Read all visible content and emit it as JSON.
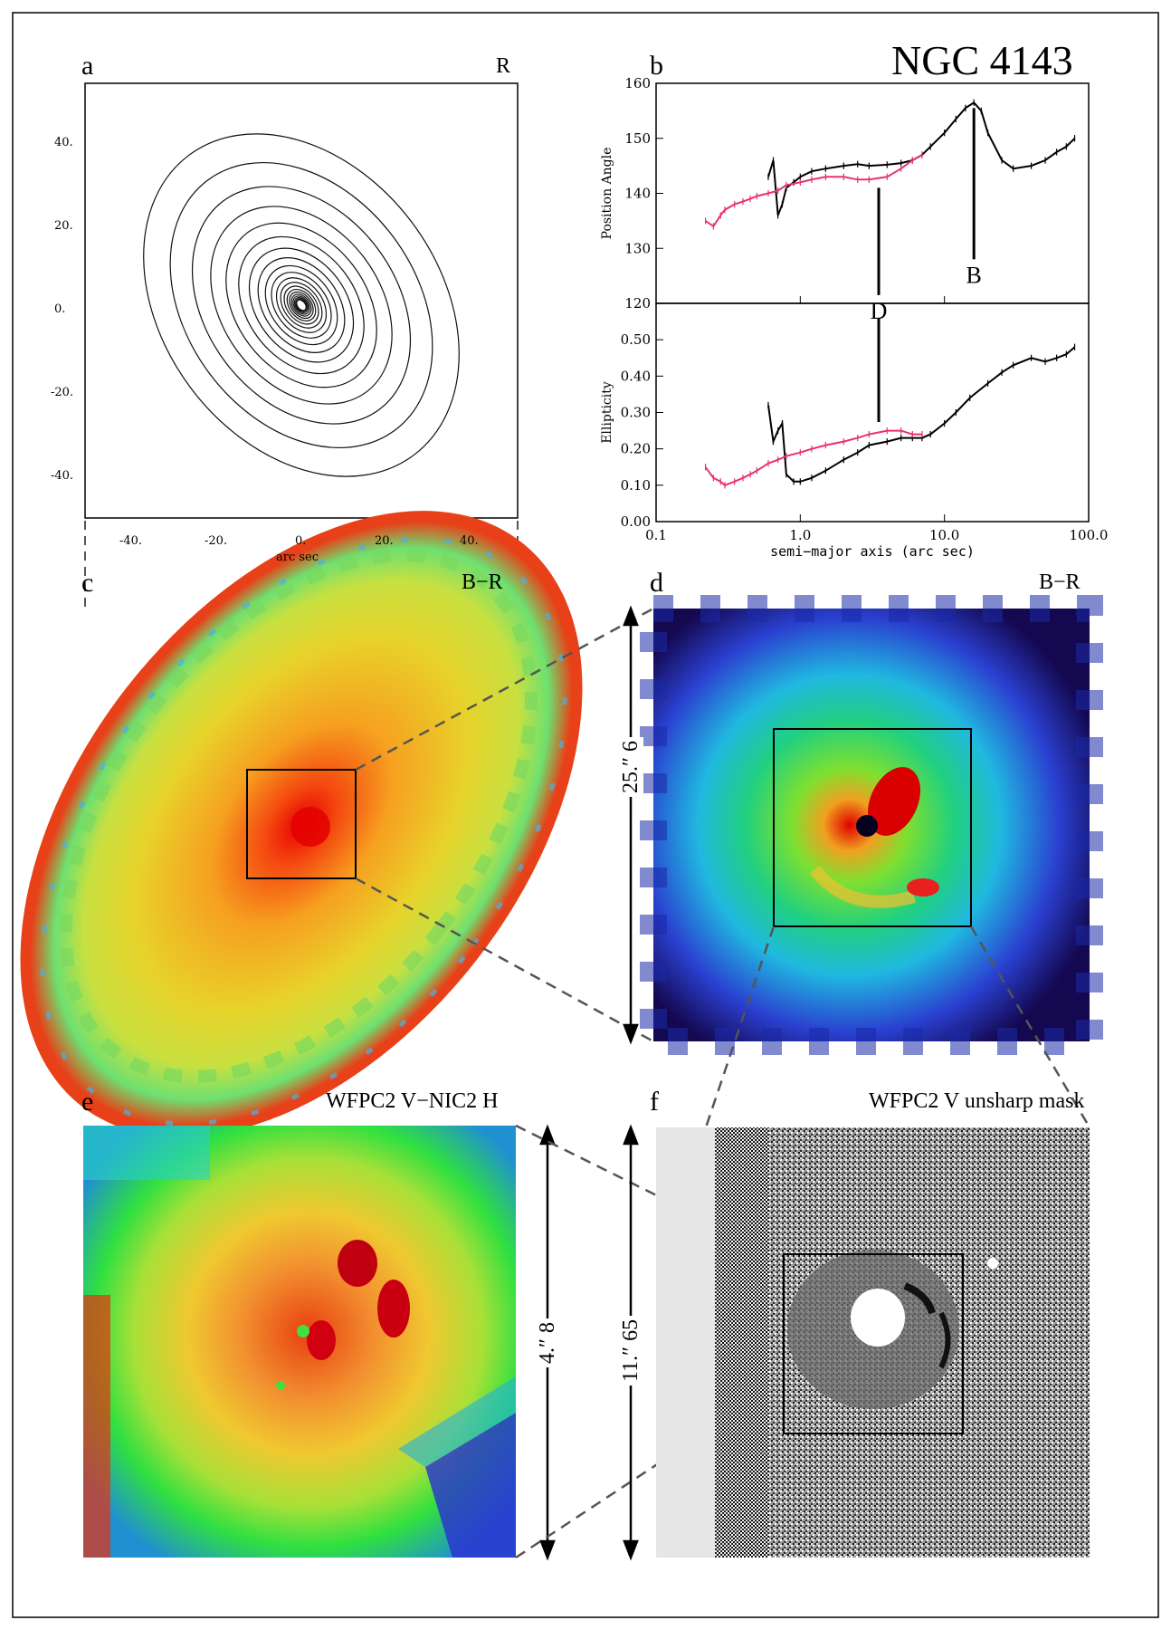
{
  "figure": {
    "object_name": "NGC 4143",
    "colors": {
      "frame": "#000000",
      "pink_series": "#e8336b",
      "dashes": "#555555",
      "mask_gray": "#e6e6e6"
    }
  },
  "panels": {
    "a": {
      "letter": "a",
      "band": "R",
      "xlabel": "arc sec",
      "xticks": [
        "-40.",
        "-20.",
        "0.",
        "20.",
        "40."
      ],
      "yticks": [
        "40.",
        "20.",
        "0.",
        "-20.",
        "-40."
      ]
    },
    "b": {
      "letter": "b"
    },
    "c": {
      "letter": "c",
      "band": "B−R"
    },
    "d": {
      "letter": "d",
      "band": "B−R",
      "scale": "25.″ 6"
    },
    "e": {
      "letter": "e",
      "band": "WFPC2 V−NIC2 H",
      "scale": "4.″ 8"
    },
    "f": {
      "letter": "f",
      "band": "WFPC2 V unsharp mask",
      "scale": "11.″ 65"
    }
  },
  "chart_data": [
    {
      "type": "line",
      "title": "",
      "xlabel": "semi−major axis (arc sec)",
      "ylabel": "Position Angle",
      "xscale": "log",
      "xlim": [
        0.1,
        100.0
      ],
      "ylim": [
        120,
        160
      ],
      "xticks": [
        "0.1",
        "1.0",
        "10.0",
        "100.0"
      ],
      "yticks": [
        "120",
        "130",
        "140",
        "150",
        "160"
      ],
      "annotations": [
        {
          "label": "B",
          "x": 16
        },
        {
          "label": "D",
          "x": 3.5
        }
      ],
      "series": [
        {
          "name": "black",
          "color": "#000000",
          "x": [
            0.6,
            0.65,
            0.7,
            0.75,
            0.8,
            0.9,
            1.0,
            1.2,
            1.5,
            2.0,
            2.5,
            3.0,
            4.0,
            5.0,
            6.0,
            7.0,
            8.0,
            10.0,
            12.0,
            14.0,
            16.0,
            18.0,
            20.0,
            25.0,
            30.0,
            40.0,
            50.0,
            60.0,
            70.0,
            80.0
          ],
          "y": [
            143,
            146,
            136,
            138,
            141,
            142,
            143,
            144,
            144.5,
            145,
            145.3,
            145,
            145.2,
            145.5,
            146,
            147,
            148.5,
            151,
            153.5,
            155.5,
            156.5,
            155,
            151,
            146,
            144.5,
            145,
            146,
            147.5,
            148.5,
            150
          ]
        },
        {
          "name": "pink",
          "color": "#e8336b",
          "x": [
            0.22,
            0.25,
            0.28,
            0.3,
            0.35,
            0.4,
            0.45,
            0.5,
            0.6,
            0.7,
            0.8,
            1.0,
            1.2,
            1.5,
            2.0,
            2.5,
            3.0,
            4.0,
            5.0,
            6.0,
            7.0
          ],
          "y": [
            135,
            134,
            136,
            137,
            138,
            138.5,
            139,
            139.5,
            140,
            140.5,
            141.5,
            142,
            142.5,
            143,
            143,
            142.5,
            142.5,
            143,
            144.5,
            146,
            147
          ]
        }
      ]
    },
    {
      "type": "line",
      "title": "",
      "xlabel": "semi−major axis (arc sec)",
      "ylabel": "Ellipticity",
      "xscale": "log",
      "xlim": [
        0.1,
        100.0
      ],
      "ylim": [
        0.0,
        0.6
      ],
      "xticks": [
        "0.1",
        "1.0",
        "10.0",
        "100.0"
      ],
      "yticks": [
        "0.00",
        "0.10",
        "0.20",
        "0.30",
        "0.40",
        "0.50"
      ],
      "series": [
        {
          "name": "black",
          "color": "#000000",
          "x": [
            0.6,
            0.65,
            0.7,
            0.75,
            0.8,
            0.9,
            1.0,
            1.2,
            1.5,
            2.0,
            2.5,
            3.0,
            4.0,
            5.0,
            6.0,
            7.0,
            8.0,
            10.0,
            12.0,
            15.0,
            20.0,
            25.0,
            30.0,
            40.0,
            50.0,
            60.0,
            70.0,
            80.0
          ],
          "y": [
            0.32,
            0.22,
            0.25,
            0.27,
            0.13,
            0.11,
            0.11,
            0.12,
            0.14,
            0.17,
            0.19,
            0.21,
            0.22,
            0.23,
            0.23,
            0.23,
            0.24,
            0.27,
            0.3,
            0.34,
            0.38,
            0.41,
            0.43,
            0.45,
            0.44,
            0.45,
            0.46,
            0.48
          ]
        },
        {
          "name": "pink",
          "color": "#e8336b",
          "x": [
            0.22,
            0.25,
            0.28,
            0.3,
            0.35,
            0.4,
            0.45,
            0.5,
            0.6,
            0.7,
            0.8,
            1.0,
            1.2,
            1.5,
            2.0,
            2.5,
            3.0,
            4.0,
            5.0,
            6.0,
            7.0
          ],
          "y": [
            0.15,
            0.12,
            0.11,
            0.1,
            0.11,
            0.12,
            0.13,
            0.14,
            0.16,
            0.17,
            0.18,
            0.19,
            0.2,
            0.21,
            0.22,
            0.23,
            0.24,
            0.25,
            0.25,
            0.24,
            0.24
          ]
        }
      ]
    }
  ]
}
